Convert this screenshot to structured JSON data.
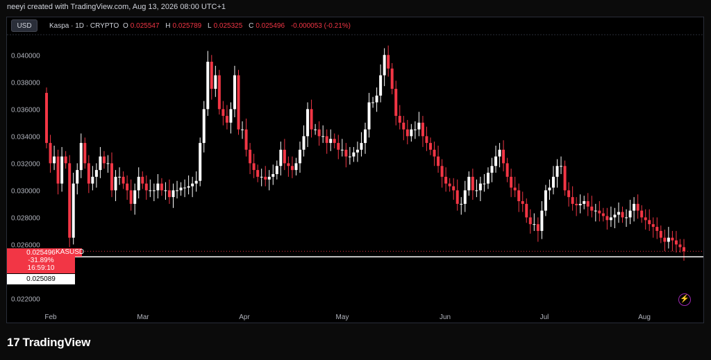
{
  "header": {
    "credit": "neeyi created with TradingView.com, Aug 13, 2026 08:00 UTC+1"
  },
  "toolbar": {
    "currency": "USD"
  },
  "legend": {
    "symbol": "Kaspa · 1D · CRYPTO",
    "o_label": "O",
    "o_value": "0.025547",
    "h_label": "H",
    "h_value": "0.025789",
    "l_label": "L",
    "l_value": "0.025325",
    "c_label": "C",
    "c_value": "0.025496",
    "change": "-0.000053 (-0.21%)"
  },
  "price_badge": {
    "price": "0.025496",
    "ticker": "KASUSD",
    "change_pct": "-31.89%",
    "countdown": "16:59:10",
    "line_price": "0.025089"
  },
  "colors": {
    "up": "#ffffff",
    "down": "#f23645",
    "background": "#000000",
    "accent": "#9c27b0"
  },
  "icons": {
    "bolt": "lightning-icon"
  },
  "footer": {
    "brand": "TradingView"
  },
  "chart_data": {
    "type": "candlestick",
    "symbol": "KASUSD",
    "timeframe": "1D",
    "ylim": [
      0.021,
      0.0415
    ],
    "y_ticks": [
      "0.040000",
      "0.038000",
      "0.036000",
      "0.034000",
      "0.032000",
      "0.030000",
      "0.028000",
      "0.026000",
      "0.022000"
    ],
    "x_ticks": [
      "Feb",
      "Mar",
      "Apr",
      "May",
      "Jun",
      "Jul",
      "Aug"
    ],
    "horizontal_line": 0.025089,
    "close_series": [
      0.0335,
      0.032,
      0.0325,
      0.0305,
      0.0325,
      0.032,
      0.0265,
      0.0305,
      0.0315,
      0.0335,
      0.032,
      0.0305,
      0.031,
      0.0315,
      0.0325,
      0.032,
      0.032,
      0.03,
      0.031,
      0.031,
      0.0305,
      0.03,
      0.029,
      0.03,
      0.031,
      0.0305,
      0.03,
      0.03,
      0.03,
      0.0305,
      0.03,
      0.03,
      0.0295,
      0.03,
      0.03,
      0.0302,
      0.0302,
      0.0303,
      0.0305,
      0.0307,
      0.0335,
      0.036,
      0.0395,
      0.0375,
      0.0385,
      0.036,
      0.0355,
      0.035,
      0.036,
      0.0385,
      0.0345,
      0.0345,
      0.033,
      0.032,
      0.0315,
      0.031,
      0.031,
      0.0308,
      0.031,
      0.0312,
      0.0318,
      0.033,
      0.032,
      0.0318,
      0.0315,
      0.032,
      0.033,
      0.034,
      0.036,
      0.0345,
      0.0345,
      0.034,
      0.034,
      0.0335,
      0.0338,
      0.0335,
      0.033,
      0.033,
      0.0325,
      0.0325,
      0.0328,
      0.033,
      0.0335,
      0.0345,
      0.0365,
      0.0365,
      0.037,
      0.0385,
      0.04,
      0.039,
      0.0375,
      0.0355,
      0.035,
      0.0345,
      0.034,
      0.0345,
      0.0345,
      0.035,
      0.034,
      0.0335,
      0.033,
      0.0325,
      0.0318,
      0.031,
      0.0305,
      0.0303,
      0.03,
      0.029,
      0.029,
      0.03,
      0.031,
      0.03,
      0.03,
      0.0305,
      0.0305,
      0.0313,
      0.0318,
      0.0325,
      0.033,
      0.032,
      0.031,
      0.0302,
      0.03,
      0.0292,
      0.029,
      0.028,
      0.0275,
      0.0275,
      0.027,
      0.0285,
      0.03,
      0.0302,
      0.031,
      0.0318,
      0.0318,
      0.03,
      0.0295,
      0.029,
      0.0289,
      0.029,
      0.0292,
      0.0288,
      0.0285,
      0.0285,
      0.0283,
      0.0281,
      0.0278,
      0.028,
      0.0282,
      0.0284,
      0.028,
      0.028,
      0.0285,
      0.029,
      0.0285,
      0.028,
      0.0278,
      0.0275,
      0.0273,
      0.027,
      0.0265,
      0.0262,
      0.0265,
      0.0263,
      0.026,
      0.0258,
      0.0255
    ]
  }
}
